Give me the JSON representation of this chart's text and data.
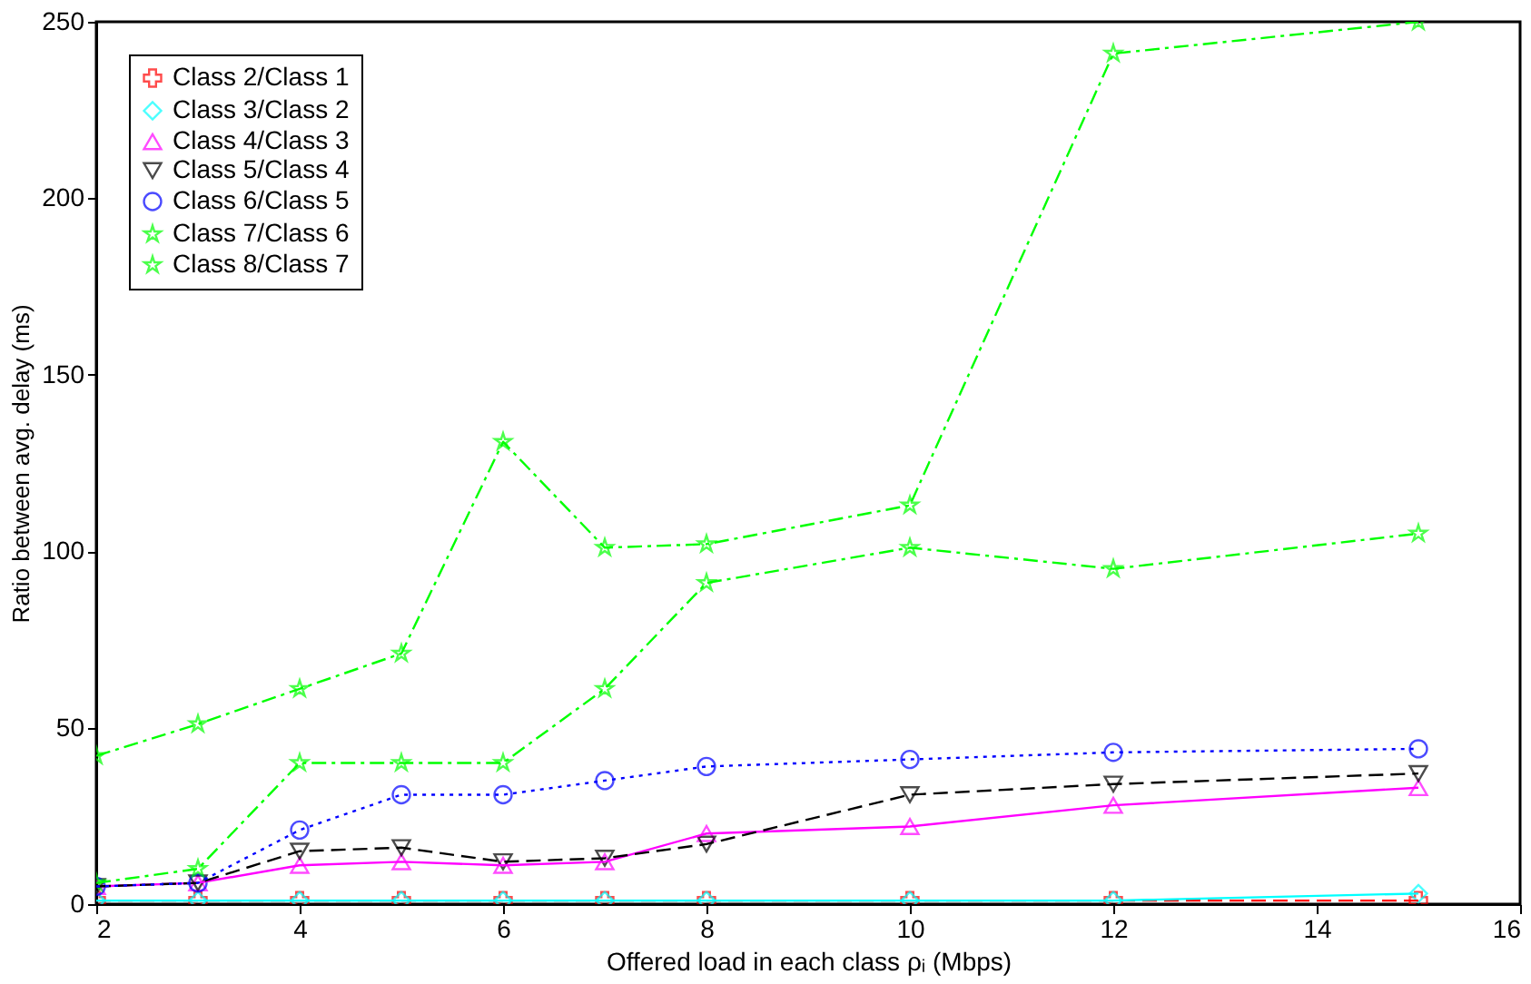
{
  "chart_data": {
    "type": "line",
    "xlabel": "Offered load in each class ρᵢ (Mbps)",
    "ylabel": "Ratio between avg. delay (ms)",
    "x": [
      2,
      3,
      4,
      5,
      6,
      7,
      8,
      10,
      12,
      15
    ],
    "xlim": [
      2,
      16
    ],
    "xticks": [
      2,
      4,
      6,
      8,
      10,
      12,
      14,
      16
    ],
    "ylim": [
      0,
      250
    ],
    "yticks": [
      0,
      50,
      100,
      150,
      200,
      250
    ],
    "grid": false,
    "legend": "top left",
    "series": [
      {
        "name": "Class 2/Class 1",
        "color": "#ff0000",
        "marker": "cross",
        "line_style": "dashed",
        "values": [
          1,
          1,
          1,
          1,
          1,
          1,
          1,
          1,
          1,
          1
        ]
      },
      {
        "name": "Class 3/Class 2",
        "color": "#00ffff",
        "marker": "diamond",
        "line_style": "solid",
        "values": [
          1,
          1,
          1,
          1,
          1,
          1,
          1,
          1,
          1,
          3
        ]
      },
      {
        "name": "Class 4/Class 3",
        "color": "#ff00ff",
        "marker": "triangle",
        "line_style": "solid",
        "values": [
          5,
          6,
          11,
          12,
          11,
          12,
          20,
          22,
          28,
          33
        ]
      },
      {
        "name": "Class 5/Class 4",
        "color": "#000000",
        "marker": "triangle-down",
        "line_style": "dashed",
        "values": [
          5,
          6,
          15,
          16,
          12,
          13,
          17,
          31,
          34,
          37
        ]
      },
      {
        "name": "Class 6/Class 5",
        "color": "#0000ff",
        "marker": "circle",
        "line_style": "dotted",
        "values": [
          5,
          6,
          21,
          31,
          31,
          35,
          39,
          41,
          43,
          44
        ]
      },
      {
        "name": "Class 7/Class 6",
        "color": "#00ff00",
        "marker": "star",
        "line_style": "dashdot",
        "values": [
          6,
          10,
          40,
          40,
          40,
          61,
          91,
          101,
          95,
          105
        ]
      },
      {
        "name": "Class 8/Class 7",
        "color": "#00ff00",
        "marker": "star",
        "line_style": "dashdot",
        "values": [
          42,
          51,
          61,
          71,
          131,
          101,
          102,
          113,
          241,
          250
        ]
      }
    ]
  }
}
